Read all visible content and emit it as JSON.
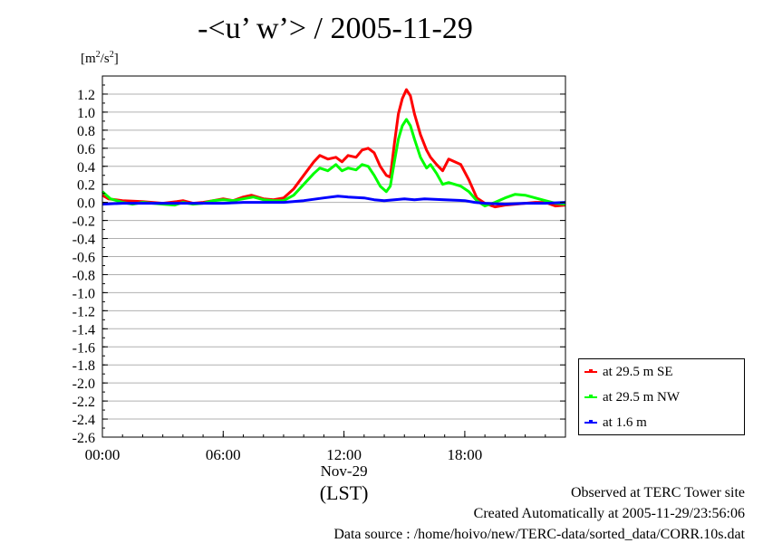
{
  "header": {
    "title": "-<u’ w’> / 2005-11-29",
    "unit_base": "[m",
    "unit_sup1": "2",
    "unit_mid": "/s",
    "unit_sup2": "2",
    "unit_end": "]"
  },
  "footer": {
    "observed": "Observed at TERC Tower site",
    "created": "Created Automatically at 2005-11-29/23:56:06",
    "source": "Data source : /home/hoivo/new/TERC-data/sorted_data/CORR.10s.dat"
  },
  "chart_data": {
    "type": "line",
    "title": "-<u’ w’> / 2005-11-29",
    "ylabel": "[m2/s2]",
    "date_label": "Nov-29",
    "timezone_label": "(LST)",
    "xlim": [
      0,
      23
    ],
    "ylim": [
      -2.6,
      1.4
    ],
    "grid": true,
    "legend_position": "bottom-right-outside",
    "x_ticks": [
      {
        "value": 0,
        "label": "00:00"
      },
      {
        "value": 6,
        "label": "06:00"
      },
      {
        "value": 12,
        "label": "12:00"
      },
      {
        "value": 18,
        "label": "18:00"
      }
    ],
    "y_ticks": [
      1.2,
      1.0,
      0.8,
      0.6,
      0.4,
      0.2,
      0.0,
      -0.2,
      -0.4,
      -0.6,
      -0.8,
      -1.0,
      -1.2,
      -1.4,
      -1.6,
      -1.8,
      -2.0,
      -2.2,
      -2.4,
      -2.6
    ],
    "y_tick_labels": [
      "1.2",
      "1.0",
      "0.8",
      "0.6",
      "0.4",
      "0.2",
      "0.0",
      "-0.2",
      "-0.4",
      "-0.6",
      "-0.8",
      "-1.0",
      "-1.2",
      "-1.4",
      "-1.6",
      "-1.8",
      "-2.0",
      "-2.2",
      "-2.4",
      "-2.6"
    ],
    "series": [
      {
        "name": "at 29.5 m SE",
        "color": "#ff0000",
        "points": [
          [
            0,
            0.08
          ],
          [
            0.3,
            0.04
          ],
          [
            1,
            0.02
          ],
          [
            2,
            0.01
          ],
          [
            3,
            -0.01
          ],
          [
            3.7,
            0.01
          ],
          [
            4,
            0.02
          ],
          [
            4.5,
            -0.01
          ],
          [
            5,
            0.0
          ],
          [
            5.5,
            0.02
          ],
          [
            6,
            0.04
          ],
          [
            6.5,
            0.02
          ],
          [
            7,
            0.06
          ],
          [
            7.4,
            0.08
          ],
          [
            8,
            0.04
          ],
          [
            8.5,
            0.03
          ],
          [
            9,
            0.05
          ],
          [
            9.5,
            0.15
          ],
          [
            10,
            0.3
          ],
          [
            10.5,
            0.45
          ],
          [
            10.8,
            0.52
          ],
          [
            11.2,
            0.48
          ],
          [
            11.6,
            0.5
          ],
          [
            11.9,
            0.45
          ],
          [
            12.2,
            0.52
          ],
          [
            12.6,
            0.5
          ],
          [
            12.9,
            0.58
          ],
          [
            13.2,
            0.6
          ],
          [
            13.5,
            0.55
          ],
          [
            13.8,
            0.4
          ],
          [
            14.1,
            0.3
          ],
          [
            14.3,
            0.28
          ],
          [
            14.5,
            0.65
          ],
          [
            14.7,
            0.98
          ],
          [
            14.9,
            1.15
          ],
          [
            15.1,
            1.25
          ],
          [
            15.3,
            1.18
          ],
          [
            15.5,
            0.98
          ],
          [
            15.8,
            0.75
          ],
          [
            16.1,
            0.58
          ],
          [
            16.3,
            0.5
          ],
          [
            16.6,
            0.42
          ],
          [
            16.9,
            0.35
          ],
          [
            17.2,
            0.48
          ],
          [
            17.5,
            0.45
          ],
          [
            17.8,
            0.42
          ],
          [
            18.2,
            0.25
          ],
          [
            18.6,
            0.05
          ],
          [
            19,
            -0.01
          ],
          [
            19.5,
            -0.05
          ],
          [
            20,
            -0.03
          ],
          [
            20.5,
            -0.02
          ],
          [
            21,
            -0.01
          ],
          [
            21.5,
            0.0
          ],
          [
            22,
            0.0
          ],
          [
            22.5,
            -0.04
          ],
          [
            23,
            -0.03
          ]
        ]
      },
      {
        "name": "at 29.5 m NW",
        "color": "#00ff00",
        "points": [
          [
            0,
            0.12
          ],
          [
            0.4,
            0.04
          ],
          [
            1,
            0.0
          ],
          [
            1.5,
            -0.02
          ],
          [
            2,
            0.0
          ],
          [
            3,
            -0.02
          ],
          [
            3.6,
            -0.03
          ],
          [
            4,
            0.0
          ],
          [
            4.5,
            -0.02
          ],
          [
            5,
            -0.01
          ],
          [
            5.5,
            0.02
          ],
          [
            6,
            0.03
          ],
          [
            6.5,
            0.02
          ],
          [
            7,
            0.04
          ],
          [
            7.5,
            0.06
          ],
          [
            8,
            0.03
          ],
          [
            8.5,
            0.02
          ],
          [
            9,
            0.02
          ],
          [
            9.5,
            0.08
          ],
          [
            10,
            0.2
          ],
          [
            10.5,
            0.32
          ],
          [
            10.8,
            0.38
          ],
          [
            11.2,
            0.35
          ],
          [
            11.6,
            0.42
          ],
          [
            11.9,
            0.35
          ],
          [
            12.2,
            0.38
          ],
          [
            12.6,
            0.36
          ],
          [
            12.9,
            0.42
          ],
          [
            13.2,
            0.4
          ],
          [
            13.5,
            0.3
          ],
          [
            13.8,
            0.18
          ],
          [
            14.1,
            0.12
          ],
          [
            14.3,
            0.18
          ],
          [
            14.5,
            0.45
          ],
          [
            14.7,
            0.7
          ],
          [
            14.9,
            0.85
          ],
          [
            15.1,
            0.92
          ],
          [
            15.3,
            0.85
          ],
          [
            15.5,
            0.7
          ],
          [
            15.8,
            0.5
          ],
          [
            16.1,
            0.38
          ],
          [
            16.3,
            0.42
          ],
          [
            16.6,
            0.32
          ],
          [
            16.9,
            0.2
          ],
          [
            17.2,
            0.22
          ],
          [
            17.5,
            0.2
          ],
          [
            17.8,
            0.18
          ],
          [
            18.2,
            0.12
          ],
          [
            18.6,
            0.02
          ],
          [
            19,
            -0.04
          ],
          [
            19.5,
            0.0
          ],
          [
            20,
            0.05
          ],
          [
            20.5,
            0.09
          ],
          [
            21,
            0.08
          ],
          [
            21.5,
            0.05
          ],
          [
            22,
            0.02
          ],
          [
            22.5,
            -0.01
          ],
          [
            23,
            -0.02
          ]
        ]
      },
      {
        "name": "at 1.6 m",
        "color": "#0000ff",
        "points": [
          [
            0,
            -0.02
          ],
          [
            1,
            -0.01
          ],
          [
            2,
            -0.01
          ],
          [
            3,
            -0.01
          ],
          [
            4,
            -0.01
          ],
          [
            5,
            -0.01
          ],
          [
            6,
            -0.01
          ],
          [
            7,
            0.0
          ],
          [
            8,
            0.0
          ],
          [
            9,
            0.0
          ],
          [
            10,
            0.02
          ],
          [
            11,
            0.05
          ],
          [
            11.7,
            0.07
          ],
          [
            12.2,
            0.06
          ],
          [
            13,
            0.05
          ],
          [
            13.5,
            0.03
          ],
          [
            14,
            0.02
          ],
          [
            14.5,
            0.03
          ],
          [
            15,
            0.04
          ],
          [
            15.5,
            0.03
          ],
          [
            16,
            0.04
          ],
          [
            17,
            0.03
          ],
          [
            18,
            0.02
          ],
          [
            18.5,
            0.0
          ],
          [
            19,
            -0.01
          ],
          [
            20,
            -0.02
          ],
          [
            21,
            -0.01
          ],
          [
            22,
            -0.01
          ],
          [
            23,
            0.0
          ]
        ]
      }
    ]
  }
}
